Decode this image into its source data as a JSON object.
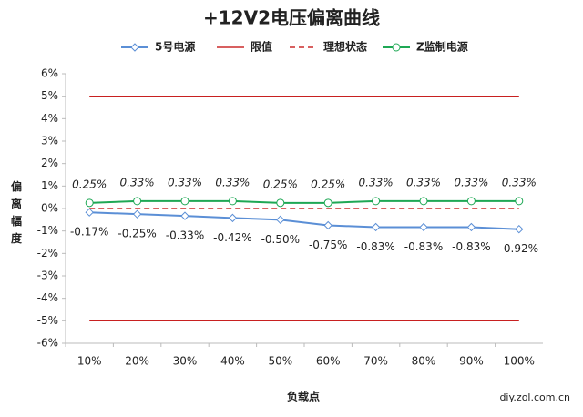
{
  "chart_data": {
    "type": "line",
    "title": "+12V2电压偏离曲线",
    "x_label": "负载点",
    "y_label": "偏离幅度",
    "watermark": "diy.zol.com.cn",
    "categories": [
      "10%",
      "20%",
      "30%",
      "40%",
      "50%",
      "60%",
      "70%",
      "80%",
      "90%",
      "100%"
    ],
    "ylim": [
      -6,
      6
    ],
    "yticks": [
      {
        "value": 6,
        "label": "6%"
      },
      {
        "value": 5,
        "label": "5%"
      },
      {
        "value": 4,
        "label": "4%"
      },
      {
        "value": 3,
        "label": "3%"
      },
      {
        "value": 2,
        "label": "2%"
      },
      {
        "value": 1,
        "label": "1%"
      },
      {
        "value": 0,
        "label": "0%"
      },
      {
        "value": -1,
        "label": "-1%"
      },
      {
        "value": -2,
        "label": "-2%"
      },
      {
        "value": -3,
        "label": "-3%"
      },
      {
        "value": -4,
        "label": "-4%"
      },
      {
        "value": -5,
        "label": "-5%"
      },
      {
        "value": -6,
        "label": "-6%"
      }
    ],
    "legend": "top",
    "series": [
      {
        "name": "5号电源",
        "color": "#5b8fd6",
        "marker": "diamond",
        "label_position": "below",
        "values": [
          -0.17,
          -0.25,
          -0.33,
          -0.42,
          -0.5,
          -0.75,
          -0.83,
          -0.83,
          -0.83,
          -0.92
        ],
        "value_labels": [
          "-0.17%",
          "-0.25%",
          "-0.33%",
          "-0.42%",
          "-0.50%",
          "-0.75%",
          "-0.83%",
          "-0.83%",
          "-0.83%",
          "-0.92%"
        ]
      },
      {
        "name": "限值",
        "color": "#c00000",
        "levels": [
          5,
          -5
        ],
        "dashed": false
      },
      {
        "name": "理想状态",
        "color": "#c00000",
        "levels": [
          0
        ],
        "dashed": true
      },
      {
        "name": "Z监制电源",
        "color": "#1fa855",
        "marker": "circle",
        "label_position": "above",
        "values": [
          0.25,
          0.33,
          0.33,
          0.33,
          0.25,
          0.25,
          0.33,
          0.33,
          0.33,
          0.33
        ],
        "value_labels": [
          "0.25%",
          "0.33%",
          "0.33%",
          "0.33%",
          "0.25%",
          "0.25%",
          "0.33%",
          "0.33%",
          "0.33%",
          "0.33%"
        ]
      }
    ]
  }
}
